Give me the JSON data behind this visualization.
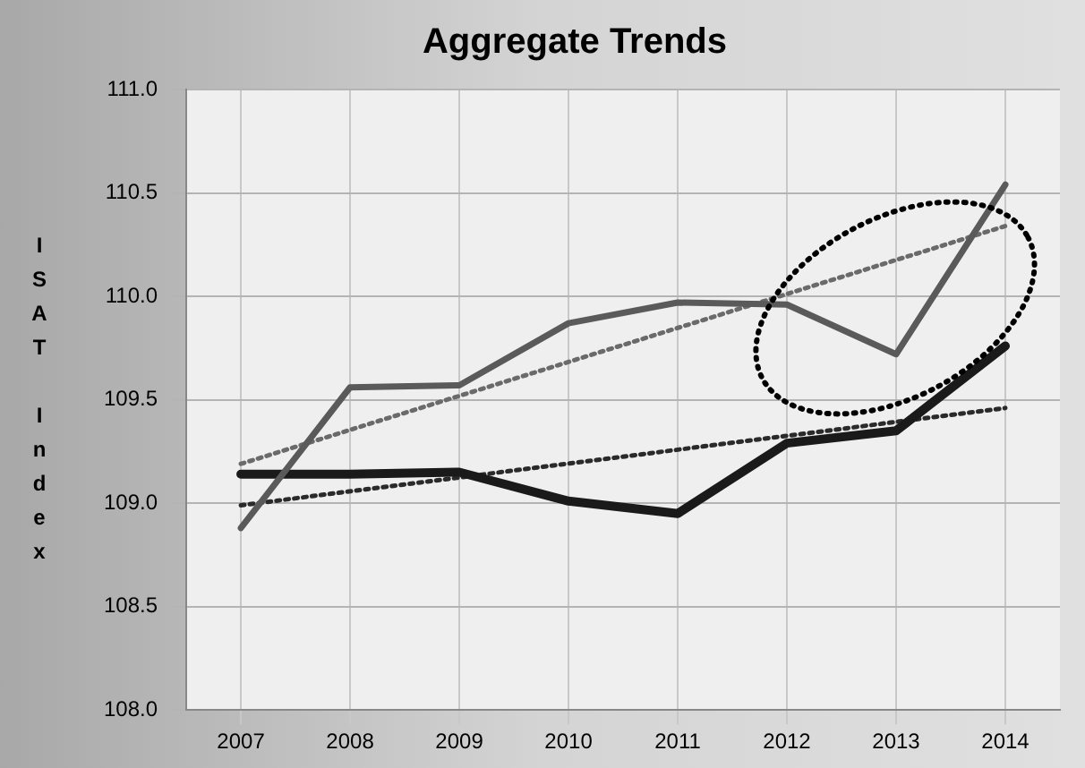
{
  "chart_data": {
    "type": "line",
    "title": "Aggregate Trends",
    "ylabel": "ISAT Index",
    "categories": [
      "2007",
      "2008",
      "2009",
      "2010",
      "2011",
      "2012",
      "2013",
      "2014"
    ],
    "series": [
      {
        "color": "#5a5a5a",
        "values": [
          108.88,
          109.56,
          109.57,
          109.87,
          109.97,
          109.96,
          109.72,
          110.54
        ]
      },
      {
        "color": "#1a1a1a",
        "values": [
          109.14,
          109.14,
          109.15,
          109.01,
          108.95,
          109.29,
          109.35,
          109.76
        ]
      },
      {
        "type": "line",
        "color": "#6a6a6a",
        "line_style": "dotted",
        "values": [
          109.19,
          null,
          null,
          null,
          null,
          null,
          null,
          110.34
        ]
      },
      {
        "type": "line",
        "color": "#2a2a2a",
        "line_style": "dotted",
        "values": [
          108.99,
          null,
          null,
          null,
          null,
          null,
          null,
          109.46
        ]
      }
    ],
    "ylim": [
      108,
      111
    ],
    "yticks": [
      {
        "value": 108,
        "label": "108.0"
      },
      {
        "value": 108.5,
        "label": "108.5"
      },
      {
        "value": 109,
        "label": "109.0"
      },
      {
        "value": 109.5,
        "label": "109.5"
      },
      {
        "value": 110,
        "label": "110.0"
      },
      {
        "value": 110.5,
        "label": "110.5"
      },
      {
        "value": 111,
        "label": "111.0"
      }
    ],
    "grid": true,
    "legend": false,
    "marker": "none",
    "line_style": "solid"
  }
}
